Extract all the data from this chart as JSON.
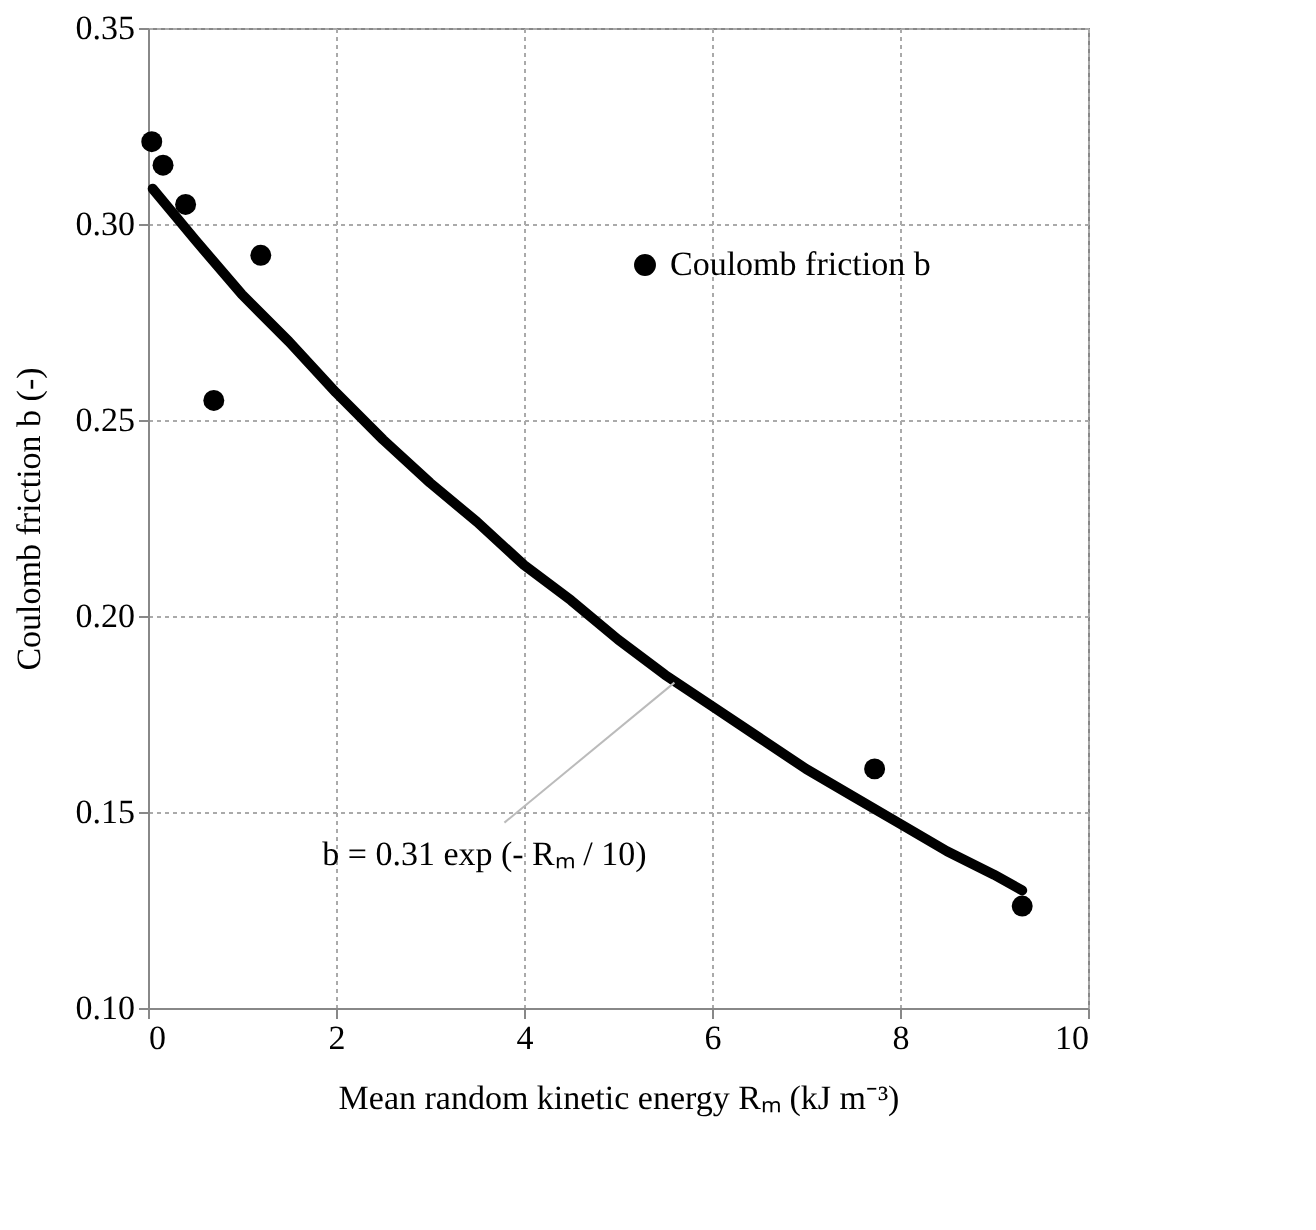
{
  "chart_data": {
    "type": "scatter",
    "xlabel": "Mean random kinetic energy Rₘ (kJ m⁻³)",
    "ylabel": "Coulomb friction b (-)",
    "xlim": [
      0,
      10
    ],
    "xticks": [
      0,
      2,
      4,
      6,
      8,
      10
    ],
    "ylim": [
      0.1,
      0.35
    ],
    "yticks": [
      {
        "value": 0.1,
        "label": "0.10"
      },
      {
        "value": 0.15,
        "label": "0.15"
      },
      {
        "value": 0.2,
        "label": "0.20"
      },
      {
        "value": 0.25,
        "label": "0.25"
      },
      {
        "value": 0.3,
        "label": "0.30"
      },
      {
        "value": 0.35,
        "label": "0.35"
      }
    ],
    "grid": true,
    "legend": "top right",
    "marker": "circle",
    "series": [
      {
        "name": "Coulomb friction b",
        "color": "#000000",
        "x": [
          0.04,
          0.16,
          0.4,
          0.7,
          1.2,
          7.73,
          9.3
        ],
        "values": [
          0.321,
          0.315,
          0.305,
          0.255,
          0.292,
          0.161,
          0.126
        ]
      },
      {
        "color": "#000000",
        "type": "line",
        "marker": "none",
        "x": [
          0.05,
          0.5,
          1,
          1.5,
          2,
          2.5,
          3,
          3.5,
          4,
          4.5,
          5,
          5.5,
          6,
          6.5,
          7,
          7.5,
          8,
          8.5,
          9,
          9.3
        ],
        "values": [
          0.309,
          0.296,
          0.282,
          0.27,
          0.257,
          0.245,
          0.234,
          0.224,
          0.213,
          0.204,
          0.194,
          0.185,
          0.177,
          0.169,
          0.161,
          0.154,
          0.147,
          0.14,
          0.134,
          0.13
        ]
      }
    ],
    "annotations": [
      {
        "text": "b = 0.31 exp (- Rₘ / 10)",
        "x": 5.6,
        "y": 0.183
      }
    ]
  }
}
